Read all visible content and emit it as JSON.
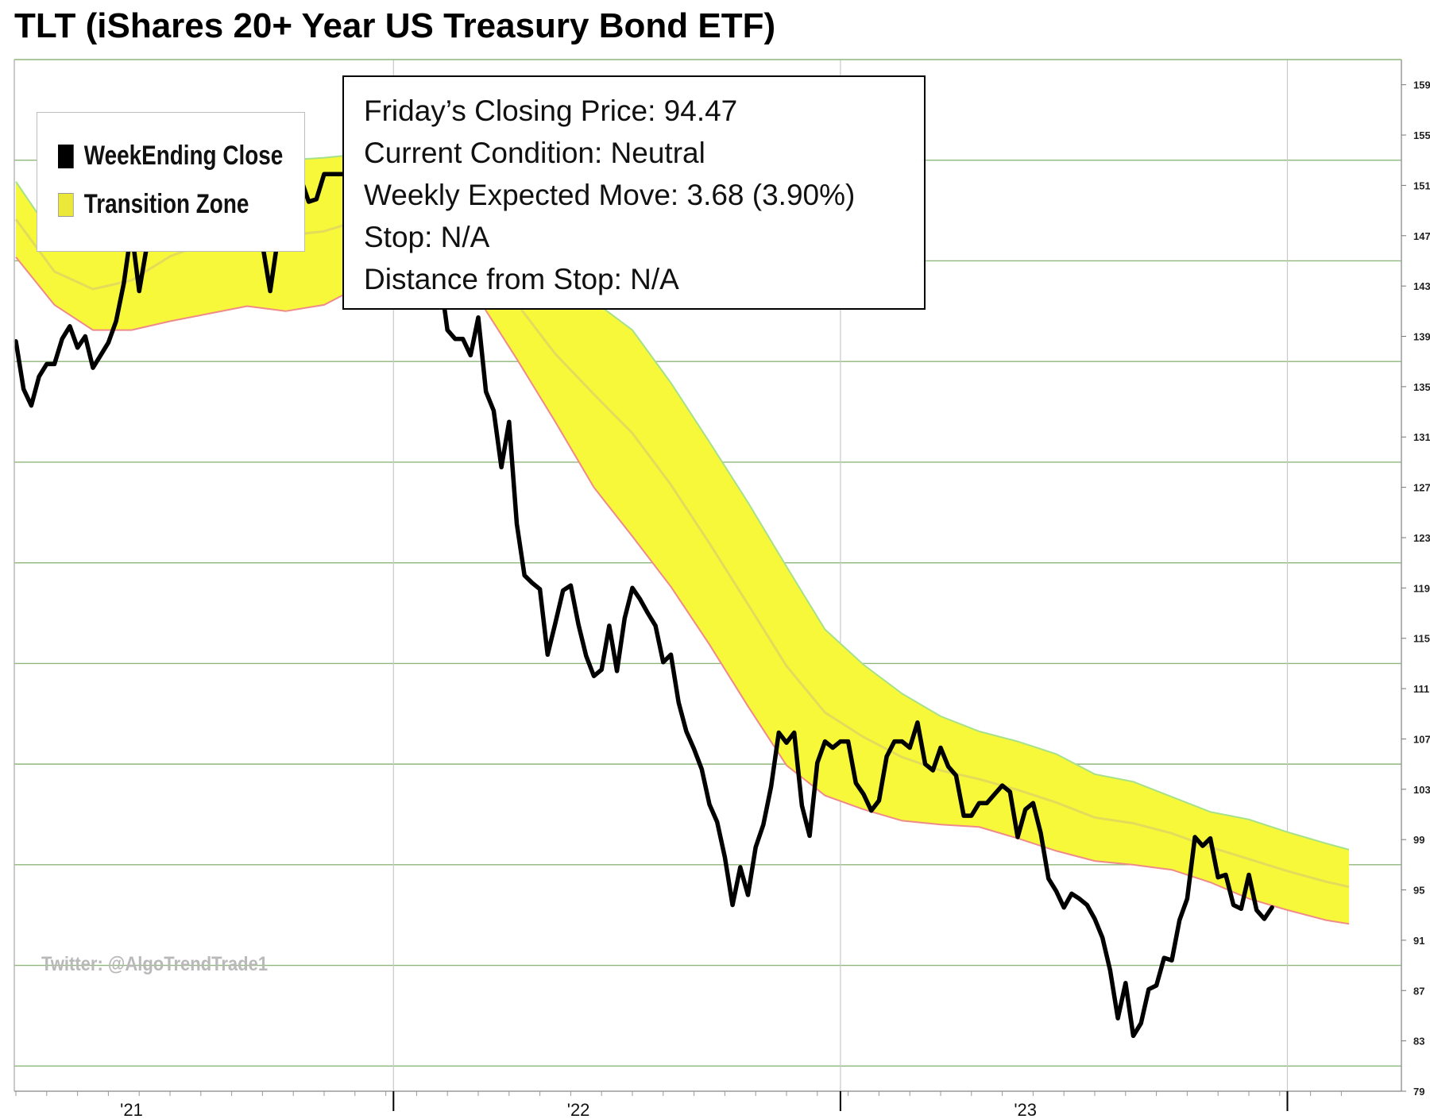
{
  "chart_data": {
    "type": "line",
    "title": "TLT (iShares 20+ Year US Treasury Bond ETF)",
    "xlabel": "",
    "ylabel": "",
    "ylim": [
      79,
      161
    ],
    "y_ticks": [
      79,
      83,
      87,
      91,
      95,
      99,
      103,
      107,
      111,
      115,
      119,
      123,
      127,
      131,
      135,
      139,
      143,
      147,
      151,
      155,
      159
    ],
    "x_ticks": [
      {
        "label": "'21",
        "week": 15
      },
      {
        "label": "'22",
        "week": 73
      },
      {
        "label": "'23",
        "week": 131
      }
    ],
    "x_major_dividers": [
      49,
      107,
      165
    ],
    "grid": true,
    "legend_position": "top-left",
    "series": [
      {
        "name": "WeekEnding Close",
        "color": "#000000",
        "values": [
          138.6,
          134.8,
          133.5,
          135.8,
          136.8,
          136.8,
          138.8,
          139.8,
          138.1,
          139,
          136.5,
          137.5,
          138.5,
          140.2,
          143.2,
          147.5,
          142.6,
          146.2,
          148.2,
          150.4,
          152.2,
          152.8,
          153.2,
          152.3,
          152,
          151.4,
          151.6,
          151.4,
          151.2,
          151.2,
          151.2,
          148,
          146.3,
          142.6,
          146.8,
          146,
          150,
          151.5,
          149.7,
          149.9,
          151.9,
          151.9,
          151.9,
          151.9,
          151.9,
          152.8,
          153.5,
          153.5,
          153.5,
          153.5,
          153.5,
          153.5,
          153,
          150.2,
          147,
          144,
          139.5,
          138.8,
          138.8,
          137.5,
          140.5,
          134.6,
          133.1,
          128.6,
          132.2,
          124.1,
          120,
          119.4,
          118.9,
          113.7,
          116.2,
          118.8,
          119.2,
          116.1,
          113.6,
          112,
          112.5,
          116,
          112.4,
          116.6,
          119,
          118.1,
          117,
          116,
          113.1,
          113.7,
          109.9,
          107.6,
          106.2,
          104.6,
          101.8,
          100.4,
          97.6,
          93.8,
          96.8,
          94.6,
          98.4,
          100.2,
          103.2,
          107.5,
          106.7,
          107.5,
          101.7,
          99.3,
          105.1,
          106.8,
          106.3,
          106.8,
          106.8,
          103.5,
          102.6,
          101.3,
          102.1,
          105.6,
          106.8,
          106.8,
          106.3,
          108.3,
          105,
          104.5,
          106.3,
          104.8,
          104.1,
          100.9,
          100.9,
          101.9,
          101.9,
          102.6,
          103.3,
          102.8,
          99.2,
          101.4,
          101.9,
          99.5,
          95.9,
          94.9,
          93.6,
          94.7,
          94.3,
          93.8,
          92.7,
          91.2,
          88.6,
          84.8,
          87.6,
          83.4,
          84.4,
          87.1,
          87.4,
          89.6,
          89.4,
          92.6,
          94.3,
          99.2,
          98.5,
          99.1,
          96,
          96.2,
          93.8,
          93.5,
          96.2,
          93.4,
          92.7,
          93.6
        ]
      },
      {
        "name": "Transition Zone",
        "color": "#f8f83a",
        "note_values": "upper and lower band edges at selected weeks",
        "weeks": [
          0,
          5,
          10,
          15,
          20,
          25,
          30,
          35,
          40,
          45,
          50,
          55,
          60,
          65,
          70,
          75,
          80,
          85,
          90,
          95,
          100,
          105,
          110,
          115,
          120,
          125,
          130,
          135,
          140,
          145,
          150,
          155,
          160,
          165,
          170,
          173
        ],
        "upper": [
          151.3,
          146.8,
          146,
          147.4,
          150.5,
          152.2,
          152.3,
          153,
          153.2,
          153.5,
          153.8,
          152.8,
          149,
          146,
          143,
          141.8,
          139.5,
          135.3,
          130.6,
          125.8,
          120.7,
          115.7,
          112.9,
          110.6,
          108.8,
          107.6,
          106.8,
          105.8,
          104.2,
          103.6,
          102.4,
          101.2,
          100.6,
          99.6,
          98.7,
          98.2
        ],
        "lower": [
          145.3,
          141.5,
          139.5,
          139.5,
          140.2,
          140.8,
          141.4,
          141,
          141.5,
          143.1,
          145.2,
          146.3,
          142,
          137.2,
          132.2,
          127,
          123.1,
          119.1,
          114.5,
          109.6,
          104.9,
          102.5,
          101.4,
          100.5,
          100.2,
          100,
          99.1,
          98.1,
          97.3,
          97,
          96.6,
          95.6,
          94.3,
          93.4,
          92.6,
          92.3
        ]
      }
    ]
  },
  "legend": {
    "items": [
      {
        "label": "WeekEnding Close",
        "color": "#000000"
      },
      {
        "label": "Transition Zone",
        "color": "#ece83a"
      }
    ]
  },
  "info_box": {
    "lines": [
      "Friday’s Closing Price: 94.47",
      "Current Condition: Neutral",
      "Weekly Expected Move: 3.68 (3.90%)",
      "Stop: N/A",
      "Distance from Stop: N/A"
    ]
  },
  "watermark": "Twitter: @AlgoTrendTrade1"
}
